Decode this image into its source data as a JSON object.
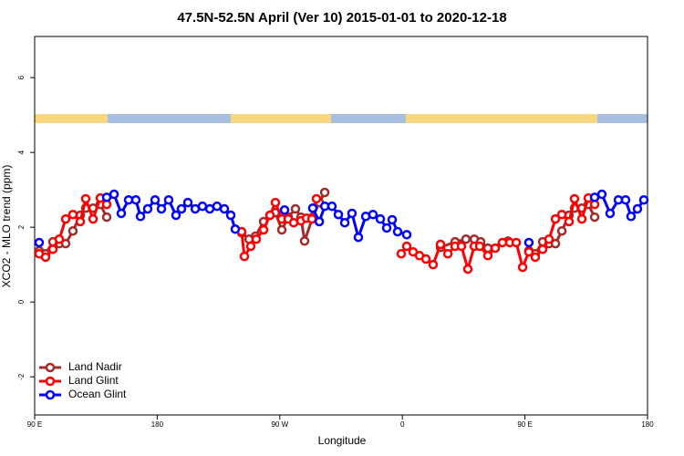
{
  "chart_data": {
    "type": "line",
    "title": "47.5N-52.5N April (Ver 10)   2015-01-01 to 2020-12-18",
    "x_label": "Longitude",
    "y_label": "XCO2 - MLO trend (ppm)",
    "xlim": [
      90,
      540
    ],
    "ylim": [
      -3.02,
      7.1
    ],
    "xticks": [
      {
        "value": 90,
        "label": "90 E"
      },
      180,
      {
        "value": 270,
        "label": "90 W"
      },
      {
        "value": 360,
        "label": "0"
      },
      {
        "value": 450,
        "label": "90 E"
      },
      {
        "value": 540,
        "label": "180"
      }
    ],
    "yticks": [
      -2,
      0,
      2,
      4,
      6
    ],
    "legend": "bottom-left",
    "series": [
      {
        "name": "Land Nadir",
        "color": "#a52a2a",
        "x": [
          93.3,
          98.0,
          103.4,
          108.1,
          112.8,
          118.1,
          123.5,
          127.5,
          132.9,
          138.2,
          142.9,
          null,
          242.0,
          247.4,
          252.1,
          258.1,
          262.8,
          266.8,
          271.5,
          276.2,
          281.5,
          285.5,
          288.2,
          294.2,
          299.0,
          303.0,
          null,
          388.0,
          398.7,
          406.7,
          412.8,
          417.5,
          422.8,
          437.6,
          null,
          452.9,
          457.6,
          463.0,
          467.7,
          472.4,
          477.1,
          482.4,
          486.4,
          491.8,
          496.5,
          501.2
        ],
        "values": [
          1.37,
          1.29,
          1.61,
          1.56,
          1.56,
          1.9,
          2.32,
          2.51,
          2.51,
          2.61,
          2.27,
          null,
          1.85,
          1.68,
          1.76,
          2.15,
          2.32,
          2.39,
          1.93,
          2.27,
          2.49,
          2.27,
          1.63,
          2.27,
          2.66,
          2.93,
          null,
          1.46,
          1.61,
          1.68,
          1.68,
          1.61,
          1.44,
          1.63,
          null,
          1.37,
          1.29,
          1.61,
          1.56,
          1.56,
          1.9,
          2.32,
          2.51,
          2.51,
          2.61,
          2.27
        ]
      },
      {
        "name": "Land Glint",
        "color": "#ff0000",
        "x": [
          93.3,
          98.0,
          103.4,
          108.1,
          112.8,
          118.1,
          123.5,
          127.5,
          132.9,
          138.2,
          142.9,
          null,
          242.0,
          244.0,
          248.7,
          252.7,
          258.1,
          262.8,
          266.8,
          271.5,
          276.2,
          280.2,
          285.5,
          289.6,
          293.6,
          296.9,
          null,
          359.2,
          363.2,
          367.9,
          372.6,
          377.3,
          382.6,
          388.0,
          393.4,
          398.7,
          403.4,
          408.1,
          412.8,
          416.8,
          422.8,
          428.2,
          433.5,
          438.9,
          443.6,
          448.3,
          452.9,
          457.6,
          463.0,
          467.7,
          472.4,
          477.1,
          482.4,
          486.4,
          491.8,
          496.5,
          501.2
        ],
        "values": [
          1.29,
          1.2,
          1.41,
          1.68,
          2.22,
          2.34,
          2.15,
          2.76,
          2.22,
          2.78,
          2.61,
          null,
          1.88,
          1.22,
          1.49,
          1.68,
          1.93,
          2.32,
          2.66,
          2.22,
          2.22,
          2.12,
          2.17,
          2.24,
          2.22,
          2.76,
          null,
          1.29,
          1.49,
          1.34,
          1.24,
          1.15,
          1.0,
          1.54,
          1.29,
          1.49,
          1.49,
          0.88,
          1.49,
          1.49,
          1.24,
          1.44,
          1.59,
          1.59,
          1.59,
          0.93,
          1.34,
          1.2,
          1.41,
          1.68,
          2.22,
          2.34,
          2.15,
          2.76,
          2.22,
          2.78,
          2.61
        ]
      },
      {
        "name": "Ocean Glint",
        "color": "#0000ff",
        "x": [
          93.3,
          null,
          142.9,
          148.3,
          153.6,
          159.0,
          164.3,
          167.7,
          173.0,
          178.4,
          183.1,
          188.4,
          193.8,
          197.8,
          202.5,
          207.9,
          213.2,
          218.6,
          223.9,
          229.3,
          234.0,
          237.3,
          null,
          273.5,
          null,
          294.2,
          299.0,
          303.0,
          308.3,
          313.0,
          317.7,
          323.0,
          327.7,
          333.1,
          338.4,
          343.8,
          348.5,
          352.5,
          356.5,
          363.2,
          null,
          452.9,
          null,
          501.2,
          506.5,
          512.5,
          518.6,
          523.9,
          527.9,
          532.6,
          537.3
        ],
        "values": [
          1.59,
          null,
          2.8,
          2.88,
          2.37,
          2.73,
          2.73,
          2.29,
          2.49,
          2.73,
          2.49,
          2.73,
          2.32,
          2.49,
          2.66,
          2.49,
          2.56,
          2.49,
          2.56,
          2.49,
          2.32,
          1.95,
          null,
          2.46,
          null,
          2.51,
          2.15,
          2.56,
          2.56,
          2.34,
          2.12,
          2.37,
          1.73,
          2.29,
          2.34,
          2.22,
          1.98,
          2.2,
          1.88,
          1.8,
          null,
          1.59,
          null,
          2.8,
          2.88,
          2.37,
          2.73,
          2.73,
          2.29,
          2.49,
          2.73
        ]
      }
    ]
  }
}
